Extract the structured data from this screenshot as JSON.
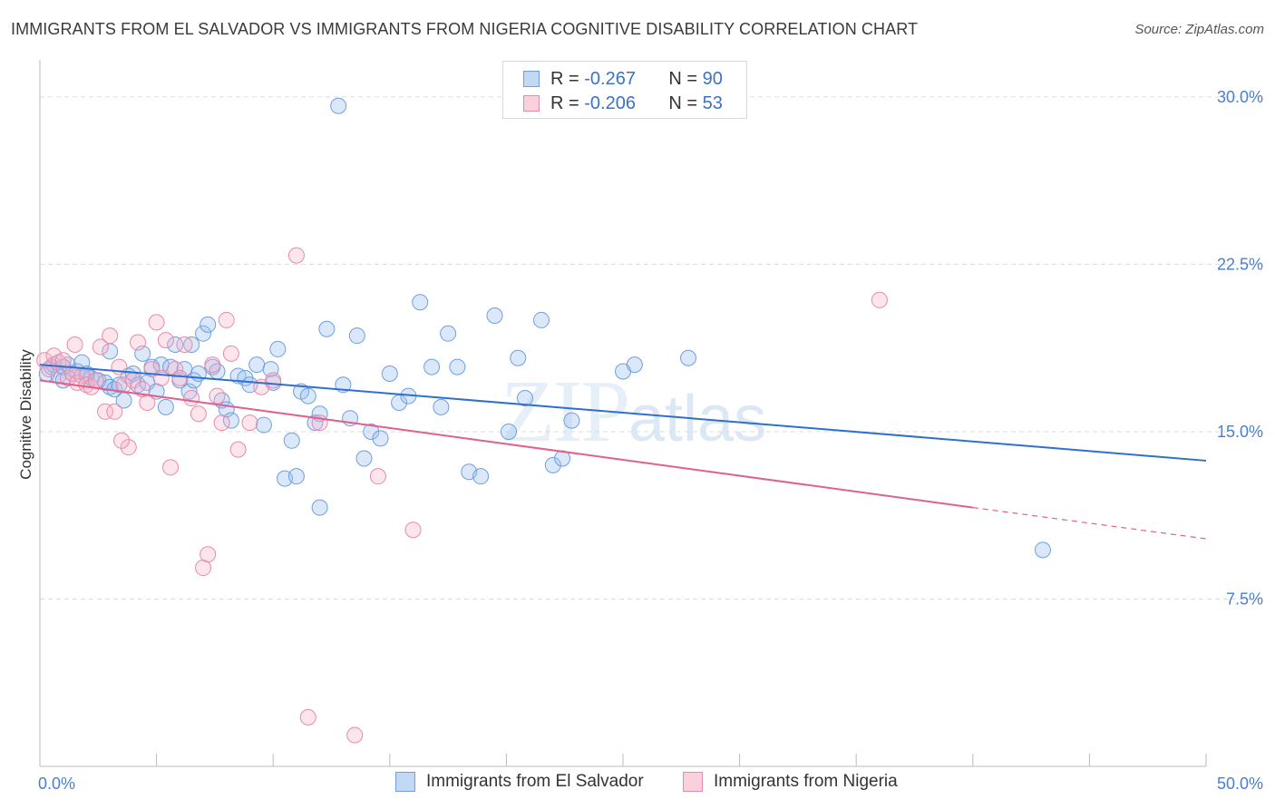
{
  "title": "IMMIGRANTS FROM EL SALVADOR VS IMMIGRANTS FROM NIGERIA COGNITIVE DISABILITY CORRELATION CHART",
  "source": "Source: ZipAtlas.com",
  "watermark": {
    "zip": "ZIP",
    "atlas": "atlas"
  },
  "legend": {
    "rows": [
      {
        "r_label": "R =",
        "r_value": "-0.267",
        "n_label": "N =",
        "n_value": "90",
        "color": "#a9c8f0",
        "border": "#6f9fe0"
      },
      {
        "r_label": "R =",
        "r_value": "-0.206",
        "n_label": "N =",
        "n_value": "53",
        "color": "#f8c4d4",
        "border": "#e88aa8"
      }
    ]
  },
  "bottom_legend": [
    {
      "label": "Immigrants from El Salvador",
      "color": "#c2d8f5",
      "border": "#6f9fe0"
    },
    {
      "label": "Immigrants from Nigeria",
      "color": "#fad0dd",
      "border": "#e88aa8"
    }
  ],
  "chart_data": {
    "type": "scatter",
    "title": "IMMIGRANTS FROM EL SALVADOR VS IMMIGRANTS FROM NIGERIA COGNITIVE DISABILITY CORRELATION CHART",
    "xlabel": "",
    "ylabel": "Cognitive Disability",
    "xlim": [
      0,
      50
    ],
    "ylim": [
      0,
      31.5
    ],
    "x_tick_labels": [
      "0.0%",
      "50.0%"
    ],
    "y_ticks": [
      7.5,
      15.0,
      22.5,
      30.0
    ],
    "y_tick_labels": [
      "7.5%",
      "15.0%",
      "22.5%",
      "30.0%"
    ],
    "grid": true,
    "legend_position": "top-center",
    "series": [
      {
        "name": "Immigrants from El Salvador",
        "color": "#6f9fe0",
        "fill": "rgba(150,190,240,0.35)",
        "trend": {
          "x": [
            0,
            50
          ],
          "y": [
            18.0,
            13.7
          ],
          "color": "#2f6fd0"
        },
        "points": [
          [
            0.3,
            17.6
          ],
          [
            0.5,
            17.9
          ],
          [
            0.6,
            18.0
          ],
          [
            0.8,
            17.5
          ],
          [
            1.0,
            17.3
          ],
          [
            1.2,
            18.0
          ],
          [
            1.4,
            17.6
          ],
          [
            1.6,
            17.7
          ],
          [
            1.8,
            18.1
          ],
          [
            2.0,
            17.5
          ],
          [
            2.2,
            17.4
          ],
          [
            2.5,
            17.3
          ],
          [
            2.8,
            17.2
          ],
          [
            3.0,
            17.0
          ],
          [
            3.2,
            16.9
          ],
          [
            3.4,
            17.1
          ],
          [
            3.6,
            16.4
          ],
          [
            3.8,
            17.5
          ],
          [
            4.0,
            17.6
          ],
          [
            4.2,
            17.1
          ],
          [
            4.4,
            18.5
          ],
          [
            4.6,
            17.2
          ],
          [
            4.8,
            17.9
          ],
          [
            5.0,
            16.8
          ],
          [
            5.2,
            18.0
          ],
          [
            5.4,
            16.1
          ],
          [
            5.6,
            17.9
          ],
          [
            5.8,
            18.9
          ],
          [
            6.0,
            17.3
          ],
          [
            6.2,
            17.8
          ],
          [
            6.4,
            16.8
          ],
          [
            6.6,
            17.3
          ],
          [
            6.8,
            17.6
          ],
          [
            7.0,
            19.4
          ],
          [
            7.2,
            19.8
          ],
          [
            7.4,
            17.9
          ],
          [
            7.6,
            17.7
          ],
          [
            7.8,
            16.4
          ],
          [
            8.0,
            16.0
          ],
          [
            8.2,
            15.5
          ],
          [
            8.5,
            17.5
          ],
          [
            8.8,
            17.4
          ],
          [
            9.0,
            17.1
          ],
          [
            9.3,
            18.0
          ],
          [
            9.6,
            15.3
          ],
          [
            9.9,
            17.8
          ],
          [
            10.2,
            18.7
          ],
          [
            10.5,
            12.9
          ],
          [
            10.8,
            14.6
          ],
          [
            11.2,
            16.8
          ],
          [
            11.5,
            16.6
          ],
          [
            11.8,
            15.4
          ],
          [
            12.0,
            15.8
          ],
          [
            12.3,
            19.6
          ],
          [
            12.8,
            29.6
          ],
          [
            13.0,
            17.1
          ],
          [
            13.3,
            15.6
          ],
          [
            13.6,
            19.3
          ],
          [
            13.9,
            13.8
          ],
          [
            14.2,
            15.0
          ],
          [
            14.6,
            14.7
          ],
          [
            15.0,
            17.6
          ],
          [
            15.4,
            16.3
          ],
          [
            15.8,
            16.6
          ],
          [
            16.3,
            20.8
          ],
          [
            16.8,
            17.9
          ],
          [
            17.2,
            16.1
          ],
          [
            17.5,
            19.4
          ],
          [
            17.9,
            17.9
          ],
          [
            18.4,
            13.2
          ],
          [
            18.9,
            13.0
          ],
          [
            19.5,
            20.2
          ],
          [
            20.1,
            15.0
          ],
          [
            20.5,
            18.3
          ],
          [
            20.8,
            16.5
          ],
          [
            21.5,
            20.0
          ],
          [
            22.0,
            13.5
          ],
          [
            22.4,
            13.8
          ],
          [
            22.8,
            15.5
          ],
          [
            25.0,
            17.7
          ],
          [
            25.5,
            18.0
          ],
          [
            27.8,
            18.3
          ],
          [
            43.0,
            9.7
          ],
          [
            10.0,
            17.2
          ],
          [
            6.5,
            18.9
          ],
          [
            3.0,
            18.6
          ],
          [
            1.0,
            17.9
          ],
          [
            2.0,
            17.6
          ],
          [
            11.0,
            13.0
          ],
          [
            12.0,
            11.6
          ]
        ]
      },
      {
        "name": "Immigrants from Nigeria",
        "color": "#e88aa8",
        "fill": "rgba(248,180,200,0.35)",
        "trend": {
          "x": [
            0,
            40
          ],
          "y": [
            17.3,
            11.6
          ],
          "color": "#e06090"
        },
        "trend_dashed": {
          "x": [
            40,
            50
          ],
          "y": [
            11.6,
            10.2
          ]
        },
        "points": [
          [
            0.2,
            18.2
          ],
          [
            0.4,
            17.8
          ],
          [
            0.6,
            18.4
          ],
          [
            0.8,
            18.1
          ],
          [
            1.0,
            18.2
          ],
          [
            1.2,
            17.4
          ],
          [
            1.4,
            17.6
          ],
          [
            1.6,
            17.2
          ],
          [
            1.8,
            17.5
          ],
          [
            2.0,
            17.1
          ],
          [
            2.2,
            17.0
          ],
          [
            2.4,
            17.3
          ],
          [
            2.6,
            18.8
          ],
          [
            2.8,
            15.9
          ],
          [
            3.0,
            19.3
          ],
          [
            3.2,
            15.9
          ],
          [
            3.4,
            17.9
          ],
          [
            3.6,
            17.1
          ],
          [
            3.8,
            14.3
          ],
          [
            4.0,
            17.3
          ],
          [
            4.2,
            19.0
          ],
          [
            4.4,
            16.9
          ],
          [
            4.6,
            16.3
          ],
          [
            4.8,
            17.8
          ],
          [
            5.0,
            19.9
          ],
          [
            5.2,
            17.4
          ],
          [
            5.4,
            19.1
          ],
          [
            5.6,
            13.4
          ],
          [
            5.8,
            17.8
          ],
          [
            6.0,
            17.4
          ],
          [
            6.2,
            18.9
          ],
          [
            6.5,
            16.5
          ],
          [
            6.8,
            15.8
          ],
          [
            7.0,
            8.9
          ],
          [
            7.2,
            9.5
          ],
          [
            7.4,
            18.0
          ],
          [
            7.6,
            16.6
          ],
          [
            7.8,
            15.4
          ],
          [
            8.0,
            20.0
          ],
          [
            8.2,
            18.5
          ],
          [
            8.5,
            14.2
          ],
          [
            9.0,
            15.4
          ],
          [
            9.5,
            17.0
          ],
          [
            10.0,
            17.3
          ],
          [
            11.0,
            22.9
          ],
          [
            11.5,
            2.2
          ],
          [
            12.0,
            15.4
          ],
          [
            13.5,
            1.4
          ],
          [
            14.5,
            13.0
          ],
          [
            16.0,
            10.6
          ],
          [
            36.0,
            20.9
          ],
          [
            3.5,
            14.6
          ],
          [
            1.5,
            18.9
          ]
        ]
      }
    ]
  }
}
